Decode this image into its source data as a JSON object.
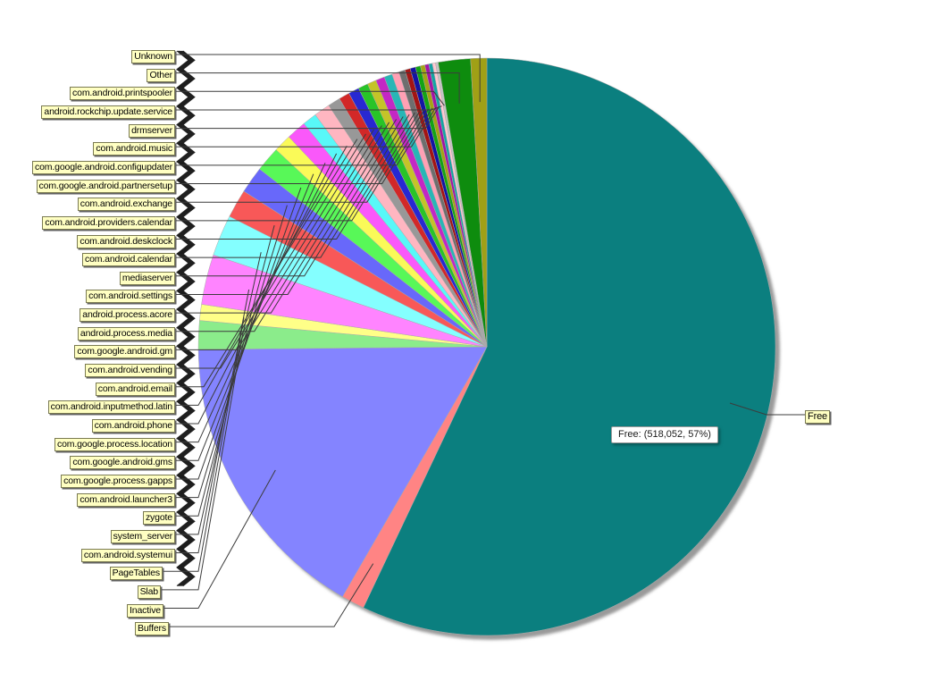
{
  "chart_data": {
    "type": "pie",
    "title": "",
    "legend_position": "left-callouts",
    "value_unit": "percent (estimated from pixels)",
    "tooltip": {
      "text": "Free: (518,052, 57%)",
      "slice": "Free",
      "value": "518,052",
      "percent": "57%"
    },
    "free_callout_label": "Free",
    "slices": [
      {
        "label": "Free",
        "value": 57.0,
        "color": "#0B7F7F"
      },
      {
        "label": "Buffers",
        "value": 1.3,
        "color": "#FF8484"
      },
      {
        "label": "Inactive",
        "value": 16.5,
        "color": "#8484FF"
      },
      {
        "label": "Slab",
        "value": 1.6,
        "color": "#8BEC8B"
      },
      {
        "label": "PageTables",
        "value": 0.9,
        "color": "#FFFF88"
      },
      {
        "label": "com.android.systemui",
        "value": 2.8,
        "color": "#FF84FF"
      },
      {
        "label": "system_server",
        "value": 2.3,
        "color": "#84FFFF"
      },
      {
        "label": "zygote",
        "value": 1.6,
        "color": "#F85858"
      },
      {
        "label": "com.android.launcher3",
        "value": 1.5,
        "color": "#6868FA"
      },
      {
        "label": "com.google.process.gapps",
        "value": 1.4,
        "color": "#58F858"
      },
      {
        "label": "com.google.android.gms",
        "value": 1.0,
        "color": "#FAFA58"
      },
      {
        "label": "com.google.process.location",
        "value": 1.1,
        "color": "#FA58FA"
      },
      {
        "label": "com.android.phone",
        "value": 0.8,
        "color": "#58F8F8"
      },
      {
        "label": "com.android.inputmethod.latin",
        "value": 0.9,
        "color": "#FFB6C1"
      },
      {
        "label": "com.android.email",
        "value": 0.7,
        "color": "#989898"
      },
      {
        "label": "com.android.vending",
        "value": 0.6,
        "color": "#D22828"
      },
      {
        "label": "com.google.android.gm",
        "value": 0.6,
        "color": "#2828D2"
      },
      {
        "label": "android.process.media",
        "value": 0.55,
        "color": "#28C428"
      },
      {
        "label": "android.process.acore",
        "value": 0.5,
        "color": "#C4C428"
      },
      {
        "label": "com.android.settings",
        "value": 0.5,
        "color": "#C428C4"
      },
      {
        "label": "mediaserver",
        "value": 0.45,
        "color": "#28B6B6"
      },
      {
        "label": "com.android.calendar",
        "value": 0.4,
        "color": "#FFA0B4"
      },
      {
        "label": "com.android.deskclock",
        "value": 0.35,
        "color": "#6E6E6E"
      },
      {
        "label": "com.android.providers.calendar",
        "value": 0.3,
        "color": "#A41414"
      },
      {
        "label": "com.android.exchange",
        "value": 0.3,
        "color": "#1414A4"
      },
      {
        "label": "com.google.android.partnersetup",
        "value": 0.28,
        "color": "#14A414"
      },
      {
        "label": "com.google.android.configupdater",
        "value": 0.25,
        "color": "#A4A414"
      },
      {
        "label": "com.android.music",
        "value": 0.22,
        "color": "#A414A4"
      },
      {
        "label": "drmserver",
        "value": 0.2,
        "color": "#14A4A4"
      },
      {
        "label": "android.rockchip.update.service",
        "value": 0.18,
        "color": "#FFC8D2"
      },
      {
        "label": "com.android.printspooler",
        "value": 0.15,
        "color": "#C6C6C6"
      },
      {
        "label": "Other",
        "value": 1.8,
        "color": "#0E8C0E"
      },
      {
        "label": "Unknown",
        "value": 0.9,
        "color": "#A0A016"
      }
    ]
  }
}
